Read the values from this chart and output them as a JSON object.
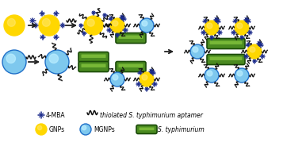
{
  "bg_color": "#ffffff",
  "gnp_color": "#FFD700",
  "gnp_highlight": "#FFE870",
  "mgnp_color": "#7EC8EE",
  "mgnp_edge_color": "#2070C8",
  "mgnp_highlight": "#BBEEFF",
  "bacteria_color": "#4A8A20",
  "bacteria_edge_color": "#1A4A08",
  "bacteria_highlight": "#88C840",
  "mba_color": "#1a2a8a",
  "arrow_color": "#222222",
  "wavy_color": "#111111",
  "legend_4mba_label": "4-MBA",
  "legend_wavy_label": "thiolated S. typhimurium aptamer",
  "legend_gnp_label": "GNPs",
  "legend_mgnp_label": "MGNPs",
  "legend_bacteria_label": "S. typhimurium",
  "figsize": [
    3.57,
    1.89
  ],
  "dpi": 100
}
